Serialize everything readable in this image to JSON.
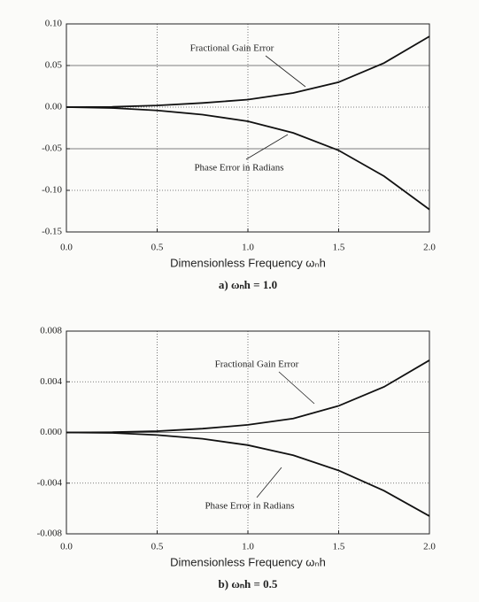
{
  "chart_data": [
    {
      "type": "line",
      "x_label": "Dimensionless Frequency ωₙh",
      "caption": "a) ωₙh = 1.0",
      "x": [
        0,
        0.25,
        0.5,
        0.75,
        1.0,
        1.25,
        1.5,
        1.75,
        2.0
      ],
      "series": [
        {
          "name": "Fractional Gain Error",
          "color": "#111111",
          "values": [
            0,
            0.0003,
            0.002,
            0.005,
            0.009,
            0.017,
            0.03,
            0.053,
            0.085
          ]
        },
        {
          "name": "Phase Error in Radians",
          "color": "#111111",
          "values": [
            0,
            -0.001,
            -0.004,
            -0.009,
            -0.017,
            -0.031,
            -0.052,
            -0.083,
            -0.123
          ]
        }
      ],
      "xlim": [
        0,
        2
      ],
      "xticks": [
        {
          "value": 0,
          "label": "0.0"
        },
        {
          "value": 0.5,
          "label": "0.5"
        },
        {
          "value": 1,
          "label": "1.0"
        },
        {
          "value": 1.5,
          "label": "1.5"
        },
        {
          "value": 2,
          "label": "2.0"
        }
      ],
      "ylim": [
        -0.15,
        0.1
      ],
      "yticks": [
        {
          "value": -0.15,
          "label": "-0.15"
        },
        {
          "value": -0.1,
          "label": "-0.10"
        },
        {
          "value": -0.05,
          "label": "-0.05"
        },
        {
          "value": 0,
          "label": "0.00"
        },
        {
          "value": 0.05,
          "label": "0.05"
        },
        {
          "value": 0.1,
          "label": "0.10"
        }
      ],
      "grid": true
    },
    {
      "type": "line",
      "x_label": "Dimensionless Frequency ωₙh",
      "caption": "b) ωₙh = 0.5",
      "x": [
        0,
        0.25,
        0.5,
        0.75,
        1.0,
        1.25,
        1.5,
        1.75,
        2.0
      ],
      "series": [
        {
          "name": "Fractional Gain Error",
          "color": "#111111",
          "values": [
            0,
            2e-05,
            0.0001,
            0.0003,
            0.0006,
            0.0011,
            0.0021,
            0.0036,
            0.0057
          ]
        },
        {
          "name": "Phase Error in Radians",
          "color": "#111111",
          "values": [
            0,
            -3e-05,
            -0.0002,
            -0.0005,
            -0.001,
            -0.0018,
            -0.003,
            -0.0046,
            -0.0066
          ]
        }
      ],
      "xlim": [
        0,
        2
      ],
      "xticks": [
        {
          "value": 0,
          "label": "0.0"
        },
        {
          "value": 0.5,
          "label": "0.5"
        },
        {
          "value": 1,
          "label": "1.0"
        },
        {
          "value": 1.5,
          "label": "1.5"
        },
        {
          "value": 2,
          "label": "2.0"
        }
      ],
      "ylim": [
        -0.008,
        0.008
      ],
      "yticks": [
        {
          "value": -0.008,
          "label": "-0.008"
        },
        {
          "value": -0.004,
          "label": "-0.004"
        },
        {
          "value": 0,
          "label": "0.000"
        },
        {
          "value": 0.004,
          "label": "0.004"
        },
        {
          "value": 0.008,
          "label": "0.008"
        }
      ],
      "grid": true
    }
  ]
}
